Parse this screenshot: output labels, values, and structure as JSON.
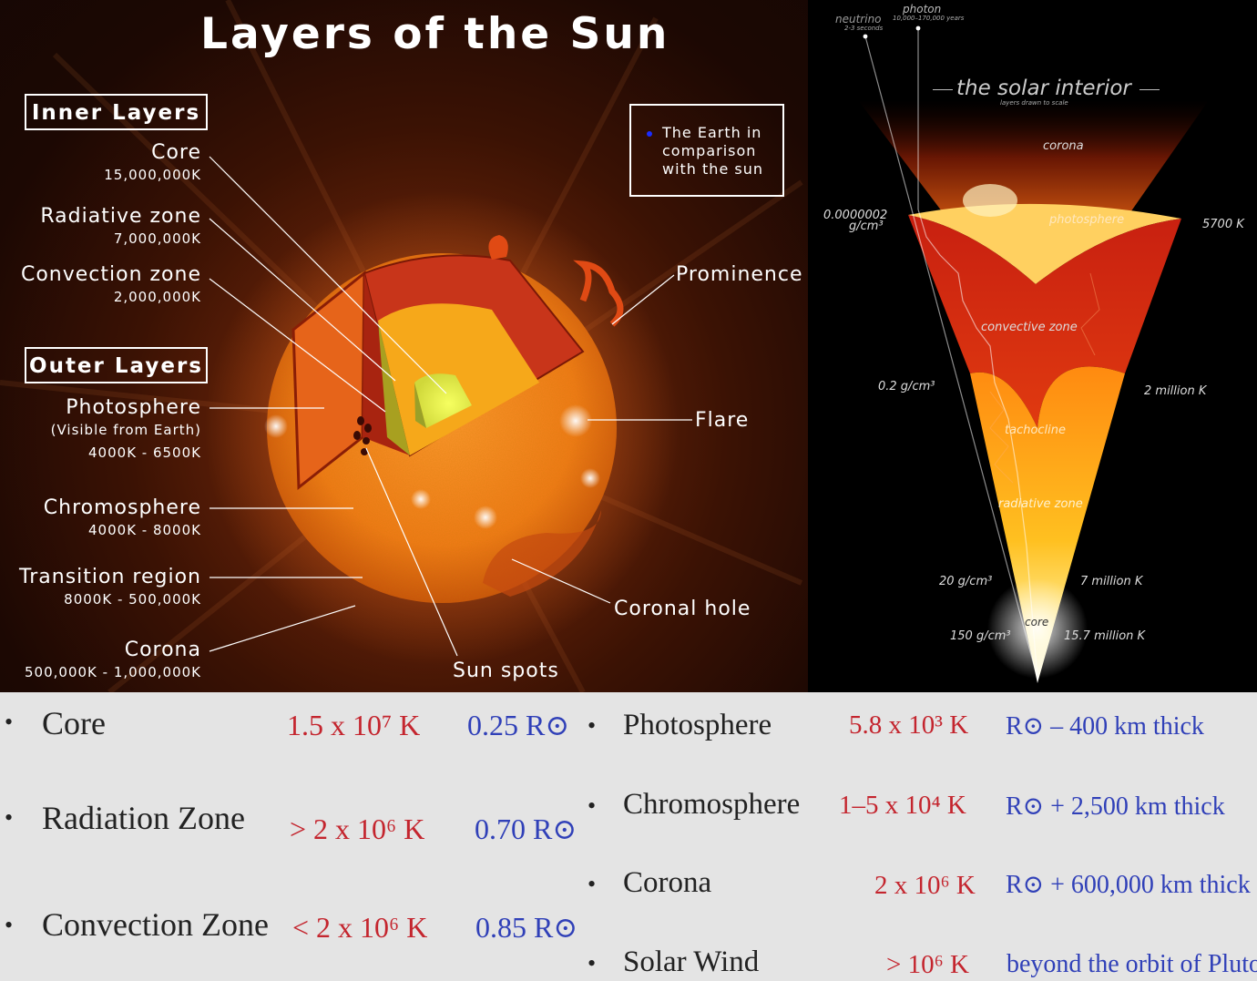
{
  "diagram": {
    "title": "Layers of the Sun",
    "inner_layers_header": "Inner Layers",
    "outer_layers_header": "Outer Layers",
    "earth_note": "The Earth in comparison with the sun",
    "inner": [
      {
        "name": "Core",
        "value": "15,000,000K"
      },
      {
        "name": "Radiative zone",
        "value": "7,000,000K"
      },
      {
        "name": "Convection zone",
        "value": "2,000,000K"
      }
    ],
    "outer": [
      {
        "name": "Photosphere",
        "note": "(Visible from Earth)",
        "value": "4000K - 6500K"
      },
      {
        "name": "Chromosphere",
        "value": "4000K - 8000K"
      },
      {
        "name": "Transition region",
        "value": "8000K - 500,000K"
      },
      {
        "name": "Corona",
        "value": "500,000K - 1,000,000K"
      }
    ],
    "features": {
      "prominence": "Prominence",
      "flare": "Flare",
      "coronal_hole": "Coronal hole",
      "sun_spots": "Sun spots"
    }
  },
  "interior": {
    "title": "the solar interior",
    "subtitle": "layers drawn to scale",
    "neutrino": "neutrino",
    "neutrino_time": "2-3 seconds",
    "photon": "photon",
    "photon_time": "10,000–170,000 years",
    "zones": {
      "corona": "corona",
      "photosphere": "photosphere",
      "convective": "convective zone",
      "tachocline": "tachocline",
      "radiative": "radiative zone",
      "core": "core"
    },
    "densities": {
      "surface_a": "0.0000002",
      "surface_b": "g/cm³",
      "mid": "0.2 g/cm³",
      "deep": "20 g/cm³",
      "core": "150 g/cm³"
    },
    "temperatures": {
      "surface": "5700 K",
      "mid": "2 million K",
      "deep": "7 million K",
      "core": "15.7 million K"
    }
  },
  "table": {
    "bullet": "•",
    "left": [
      {
        "name": "Core",
        "temp": "1.5 x 10⁷ K",
        "radius": "0.25 R⊙"
      },
      {
        "name": "Radiation Zone",
        "temp": "> 2 x 10⁶ K",
        "radius": "0.70 R⊙"
      },
      {
        "name": "Convection Zone",
        "temp": "< 2 x 10⁶ K",
        "radius": "0.85 R⊙"
      }
    ],
    "right": [
      {
        "name": "Photosphere",
        "temp": "5.8 x 10³ K",
        "extent": "R⊙ – 400 km thick"
      },
      {
        "name": "Chromosphere",
        "temp": "1–5  x 10⁴ K",
        "extent": "R⊙ + 2,500 km thick"
      },
      {
        "name": "Corona",
        "temp": "2 x 10⁶ K",
        "extent": "R⊙ + 600,000 km thick"
      },
      {
        "name": "Solar Wind",
        "temp": "> 10⁶ K",
        "extent": "beyond the orbit of Pluto"
      }
    ]
  },
  "colors": {
    "temperature": "#c4252e",
    "radius": "#3040b8",
    "earth_dot": "#1a2cff"
  }
}
